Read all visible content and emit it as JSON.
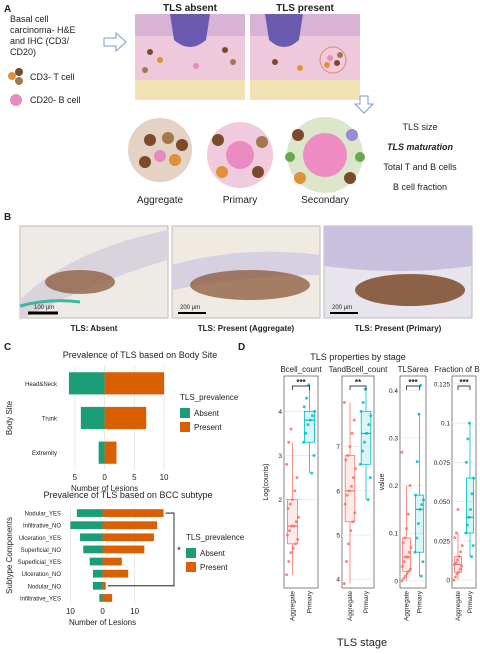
{
  "panel_labels": [
    "A",
    "B",
    "C",
    "D"
  ],
  "panel_a": {
    "source_label": [
      "Basal cell",
      "carcinoma- H&E",
      "and IHC (CD3/",
      "CD20)"
    ],
    "legend": [
      "CD3- T cell",
      "CD20- B cell"
    ],
    "conditions": [
      "TLS absent",
      "TLS present"
    ],
    "stages": [
      "Aggregate",
      "Primary",
      "Secondary"
    ],
    "measures": [
      "TLS size",
      "TLS maturation",
      "Total T and B cells",
      "B cell fraction"
    ]
  },
  "panel_b": {
    "captions": [
      "TLS: Absent",
      "TLS: Present (Aggregate)",
      "TLS: Present (Primary)"
    ],
    "scale_bars": [
      "100 µm",
      "200 µm",
      "200 µm"
    ]
  },
  "panel_d": {
    "title": "TLS properties by stage",
    "x_label": "TLS stage"
  },
  "chart_data": [
    {
      "type": "bar",
      "orientation": "horizontal",
      "title": "Prevalence of TLS based on Body Site",
      "x_label": "Number of Lesions",
      "y_label": "Body Site",
      "legend_title": "TLS_prevalence",
      "categories": [
        "Head&Neck",
        "Trunk",
        "Extremity"
      ],
      "series": [
        {
          "name": "Absent",
          "color": "#1b9e77",
          "values": [
            -6,
            -4,
            -1
          ]
        },
        {
          "name": "Present",
          "color": "#d95f02",
          "values": [
            10,
            7,
            2
          ]
        }
      ],
      "xlim": [
        -7.5,
        11
      ],
      "xticks": [
        {
          "value": -5,
          "label": "5"
        },
        0,
        5,
        10
      ],
      "grid": true
    },
    {
      "type": "bar",
      "orientation": "horizontal",
      "title": "Prevalence of TLS based on BCC subtype",
      "x_label": "Number of Lesions",
      "y_label": "Subtype Components",
      "legend_title": "TLS_prevalence",
      "categories": [
        "Nodular_YES",
        "Infiltrative_NO",
        "Ulceration_YES",
        "Superficial_NO",
        "Superficial_YES",
        "Ulceration_NO",
        "Nodular_NO",
        "Infiltrative_YES"
      ],
      "series": [
        {
          "name": "Absent",
          "color": "#1b9e77",
          "values": [
            -8,
            -10,
            -7,
            -6,
            -4,
            -3,
            -3,
            -1
          ]
        },
        {
          "name": "Present",
          "color": "#d95f02",
          "values": [
            19,
            17,
            16,
            13,
            6,
            8,
            1,
            3
          ]
        }
      ],
      "xlim": [
        -12,
        21
      ],
      "xticks": [
        {
          "value": -10,
          "label": "10"
        },
        0,
        10
      ],
      "grid": true,
      "annotation": "*"
    },
    {
      "type": "box",
      "title": "Bcell_count",
      "y_label": "Log(counts)",
      "categories": [
        "Aggregate",
        "Primary"
      ],
      "colors": [
        "#f8766d",
        "#00bfc4"
      ],
      "significance": "***",
      "boxes": [
        {
          "low": 0.3,
          "q1": 1.0,
          "median": 1.4,
          "q3": 2.0,
          "high": 3.3,
          "points": [
            0.3,
            0.6,
            0.8,
            0.9,
            1.0,
            1.1,
            1.2,
            1.3,
            1.4,
            1.4,
            1.5,
            1.6,
            1.8,
            1.9,
            2.0,
            2.2,
            2.5,
            2.8,
            3.3,
            3.6
          ]
        },
        {
          "low": 2.6,
          "q1": 3.3,
          "median": 3.8,
          "q3": 4.0,
          "high": 4.6,
          "points": [
            2.6,
            3.0,
            3.3,
            3.5,
            3.7,
            3.8,
            3.9,
            4.0,
            4.1,
            4.3,
            4.6
          ]
        }
      ],
      "ylim": [
        0,
        4.8
      ],
      "yticks": [
        2,
        3,
        4
      ],
      "grid": true
    },
    {
      "type": "box",
      "title": "TandBcell_count",
      "categories": [
        "Aggregate",
        "Primary"
      ],
      "colors": [
        "#f8766d",
        "#00bfc4"
      ],
      "significance": "**",
      "boxes": [
        {
          "low": 3.9,
          "q1": 5.3,
          "median": 6.0,
          "q3": 6.8,
          "high": 8.0,
          "points": [
            3.9,
            4.4,
            4.8,
            5.1,
            5.3,
            5.5,
            5.7,
            5.9,
            6.0,
            6.1,
            6.3,
            6.5,
            6.7,
            6.8,
            7.0,
            7.3,
            7.6,
            8.0
          ]
        },
        {
          "low": 5.8,
          "q1": 6.6,
          "median": 7.3,
          "q3": 7.8,
          "high": 8.3,
          "points": [
            5.8,
            6.3,
            6.6,
            6.9,
            7.1,
            7.3,
            7.5,
            7.7,
            7.8,
            8.0,
            8.3
          ]
        }
      ],
      "ylim": [
        3.8,
        8.6
      ],
      "yticks": [
        4,
        5,
        6,
        7
      ],
      "grid": true
    },
    {
      "type": "box",
      "title": "TLSarea",
      "y_label": "value",
      "categories": [
        "Aggregate",
        "Primary"
      ],
      "colors": [
        "#f8766d",
        "#00bfc4"
      ],
      "significance": "***",
      "boxes": [
        {
          "low": 0.0,
          "q1": 0.02,
          "median": 0.05,
          "q3": 0.09,
          "high": 0.2,
          "points": [
            0.0,
            0.005,
            0.01,
            0.015,
            0.02,
            0.025,
            0.03,
            0.04,
            0.05,
            0.05,
            0.06,
            0.07,
            0.08,
            0.09,
            0.11,
            0.14,
            0.2,
            0.27
          ]
        },
        {
          "low": 0.01,
          "q1": 0.06,
          "median": 0.15,
          "q3": 0.18,
          "high": 0.35,
          "points": [
            0.01,
            0.04,
            0.06,
            0.09,
            0.12,
            0.15,
            0.16,
            0.17,
            0.18,
            0.25,
            0.35,
            0.41
          ]
        }
      ],
      "ylim": [
        -0.015,
        0.43
      ],
      "yticks": [
        0,
        0.1,
        0.2,
        0.3,
        0.4
      ],
      "grid": true
    },
    {
      "type": "box",
      "title": "Fraction of B cell",
      "categories": [
        "Aggregate",
        "Primary"
      ],
      "colors": [
        "#f8766d",
        "#00bfc4"
      ],
      "significance": "***",
      "boxes": [
        {
          "low": 0.0,
          "q1": 0.005,
          "median": 0.01,
          "q3": 0.015,
          "high": 0.03,
          "points": [
            0.0,
            0.002,
            0.004,
            0.005,
            0.007,
            0.009,
            0.01,
            0.011,
            0.013,
            0.015,
            0.018,
            0.022,
            0.027,
            0.03,
            0.045
          ]
        },
        {
          "low": 0.015,
          "q1": 0.03,
          "median": 0.04,
          "q3": 0.065,
          "high": 0.1,
          "points": [
            0.015,
            0.022,
            0.03,
            0.035,
            0.04,
            0.045,
            0.055,
            0.065,
            0.075,
            0.09,
            0.1
          ]
        }
      ],
      "ylim": [
        -0.005,
        0.13
      ],
      "yticks": [
        0,
        {
          "value": 0.025,
          "label": "0.025"
        },
        {
          "value": 0.05,
          "label": "0.050"
        },
        {
          "value": 0.075,
          "label": "0.075"
        },
        0.1,
        0.125
      ],
      "grid": true
    }
  ]
}
